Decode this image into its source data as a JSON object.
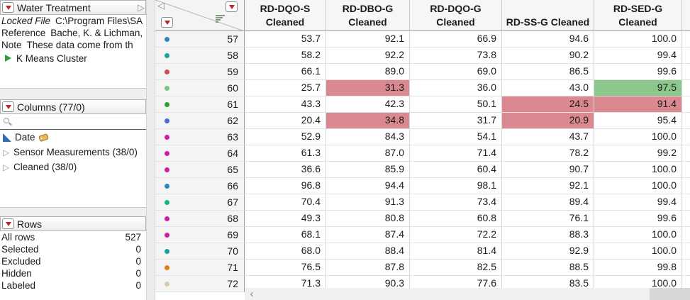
{
  "icons": {
    "panel_collapse": "▷",
    "table_collapse": "◁",
    "group_triangle": "▷",
    "scroll_left": "‹"
  },
  "sidebar": {
    "table_panel": {
      "title": "Water Treatment",
      "variables": [
        {
          "label": "Locked File",
          "value": "C:\\Program Files\\SA"
        },
        {
          "label": "Reference",
          "value": "Bache, K. & Lichman,"
        },
        {
          "label": "Note",
          "value": "These data come from th"
        }
      ],
      "script": {
        "label": "K Means Cluster"
      }
    },
    "columns_panel": {
      "title": "Columns (77/0)",
      "search_value": "",
      "items": [
        {
          "label": "Date",
          "type": "continuous",
          "tagged": true
        },
        {
          "label": "Sensor Measurements (38/0)",
          "type": "group"
        },
        {
          "label": "Cleaned (38/0)",
          "type": "group"
        }
      ]
    },
    "rows_panel": {
      "title": "Rows",
      "stats": [
        {
          "label": "All rows",
          "value": "527"
        },
        {
          "label": "Selected",
          "value": "0"
        },
        {
          "label": "Excluded",
          "value": "0"
        },
        {
          "label": "Hidden",
          "value": "0"
        },
        {
          "label": "Labeled",
          "value": "0"
        }
      ]
    }
  },
  "table": {
    "columns": [
      {
        "name": "RD-DQO-S Cleaned",
        "lines": [
          "RD-DQO-S",
          "Cleaned"
        ]
      },
      {
        "name": "RD-DBO-G Cleaned",
        "lines": [
          "RD-DBO-G",
          "Cleaned"
        ]
      },
      {
        "name": "RD-DQO-G Cleaned",
        "lines": [
          "RD-DQO-G",
          "Cleaned"
        ]
      },
      {
        "name": "RD-SS-G Cleaned",
        "lines": [
          "RD-SS-G Cleaned"
        ]
      },
      {
        "name": "RD-SED-G Cleaned",
        "lines": [
          "RD-SED-G",
          "Cleaned"
        ]
      }
    ],
    "highlight_colors": {
      "pink": "#d9898f",
      "green": "#8cc88c"
    },
    "rows": [
      {
        "n": "57",
        "dot": "#2e86c1",
        "values": [
          "53.7",
          "92.1",
          "66.9",
          "94.6",
          "100.0"
        ],
        "hl": {}
      },
      {
        "n": "58",
        "dot": "#18a2a2",
        "values": [
          "58.2",
          "92.2",
          "73.8",
          "90.2",
          "99.4"
        ],
        "hl": {}
      },
      {
        "n": "59",
        "dot": "#d14b50",
        "values": [
          "66.1",
          "89.0",
          "69.0",
          "86.5",
          "99.6"
        ],
        "hl": {}
      },
      {
        "n": "60",
        "dot": "#77c77f",
        "values": [
          "25.7",
          "31.3",
          "36.0",
          "43.0",
          "97.5"
        ],
        "hl": {
          "1": "pink",
          "4": "green"
        }
      },
      {
        "n": "61",
        "dot": "#2ba02b",
        "values": [
          "43.3",
          "42.3",
          "50.1",
          "24.5",
          "91.4"
        ],
        "hl": {
          "3": "pink",
          "4": "pink"
        }
      },
      {
        "n": "62",
        "dot": "#4968dd",
        "values": [
          "20.4",
          "34.8",
          "31.7",
          "20.9",
          "95.4"
        ],
        "hl": {
          "1": "pink",
          "3": "pink"
        }
      },
      {
        "n": "63",
        "dot": "#cf1da5",
        "values": [
          "52.9",
          "84.3",
          "54.1",
          "43.7",
          "100.0"
        ],
        "hl": {}
      },
      {
        "n": "64",
        "dot": "#cf1da5",
        "values": [
          "61.3",
          "87.0",
          "71.4",
          "78.2",
          "99.2"
        ],
        "hl": {}
      },
      {
        "n": "65",
        "dot": "#cf1da5",
        "values": [
          "36.6",
          "85.9",
          "60.4",
          "90.7",
          "100.0"
        ],
        "hl": {}
      },
      {
        "n": "66",
        "dot": "#2e86c1",
        "values": [
          "96.8",
          "94.4",
          "98.1",
          "92.1",
          "100.0"
        ],
        "hl": {}
      },
      {
        "n": "67",
        "dot": "#12b483",
        "values": [
          "70.4",
          "91.3",
          "73.4",
          "89.4",
          "99.4"
        ],
        "hl": {}
      },
      {
        "n": "68",
        "dot": "#cf1da5",
        "values": [
          "49.3",
          "80.8",
          "60.8",
          "76.1",
          "99.6"
        ],
        "hl": {}
      },
      {
        "n": "69",
        "dot": "#cf1da5",
        "values": [
          "68.1",
          "87.4",
          "72.2",
          "88.3",
          "100.0"
        ],
        "hl": {}
      },
      {
        "n": "70",
        "dot": "#18a2a2",
        "values": [
          "68.0",
          "88.4",
          "81.4",
          "92.9",
          "100.0"
        ],
        "hl": {}
      },
      {
        "n": "71",
        "dot": "#dd8119",
        "values": [
          "76.5",
          "87.8",
          "82.5",
          "88.5",
          "99.8"
        ],
        "hl": {}
      },
      {
        "n": "72",
        "dot": "#ddc9b0",
        "values": [
          "71.3",
          "90.3",
          "77.6",
          "83.5",
          "100.0"
        ],
        "hl": {}
      }
    ]
  }
}
